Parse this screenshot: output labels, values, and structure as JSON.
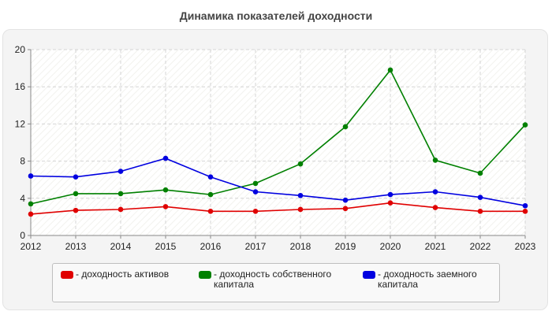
{
  "chart_data": {
    "type": "line",
    "title": "Динамика показателей доходности",
    "categories": [
      "2012",
      "2013",
      "2014",
      "2015",
      "2016",
      "2017",
      "2018",
      "2019",
      "2020",
      "2021",
      "2022",
      "2023"
    ],
    "ylim": [
      0,
      20
    ],
    "yticks": [
      "0",
      "4",
      "8",
      "12",
      "16",
      "20"
    ],
    "grid": true,
    "legend_position": "bottom",
    "series": [
      {
        "name": "- доходность активов",
        "color": "#e00000",
        "values": [
          2.3,
          2.7,
          2.8,
          3.1,
          2.6,
          2.6,
          2.8,
          2.9,
          3.5,
          3.0,
          2.6,
          2.6
        ]
      },
      {
        "name": "- доходность собственного капитала",
        "color": "#008000",
        "values": [
          3.4,
          4.5,
          4.5,
          4.9,
          4.4,
          5.6,
          7.7,
          11.7,
          17.8,
          8.1,
          6.7,
          11.9
        ]
      },
      {
        "name": "- доходность заемного капитала",
        "color": "#0000e0",
        "values": [
          6.4,
          6.3,
          6.9,
          8.3,
          6.3,
          4.7,
          4.3,
          3.8,
          4.4,
          4.7,
          4.1,
          3.2
        ]
      }
    ]
  }
}
